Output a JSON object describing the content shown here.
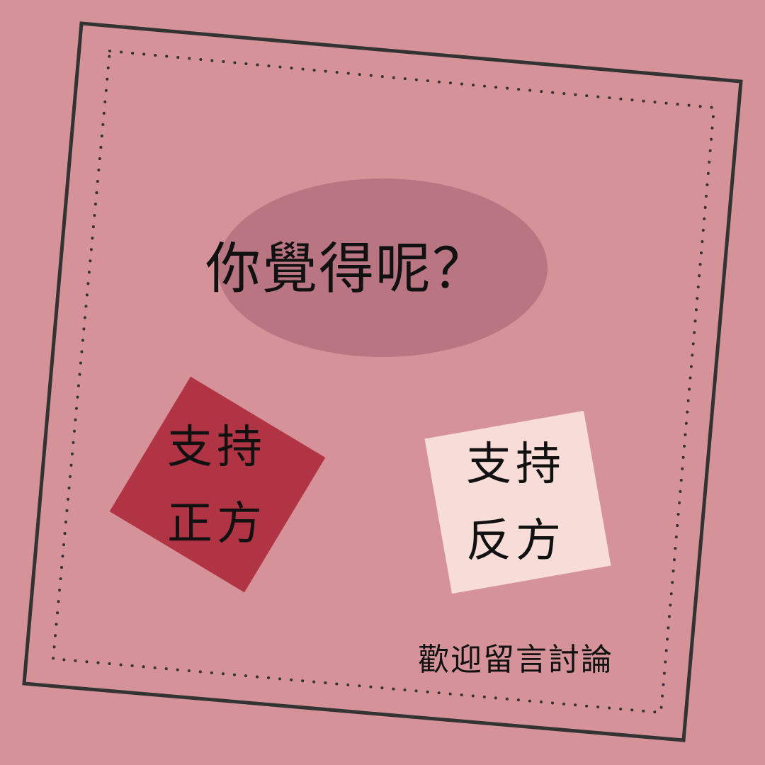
{
  "page": {
    "title": "你覺得呢？",
    "left_card": {
      "line1": "支持",
      "line2": "正方"
    },
    "right_card": {
      "line1": "支持",
      "line2": "反方"
    },
    "footer": "歡迎留言討論"
  },
  "colors": {
    "background": "#d59399",
    "ellipse": "#b97682",
    "left_card": "#b03444",
    "right_card": "#f7dcd8",
    "frame": "#333333"
  }
}
